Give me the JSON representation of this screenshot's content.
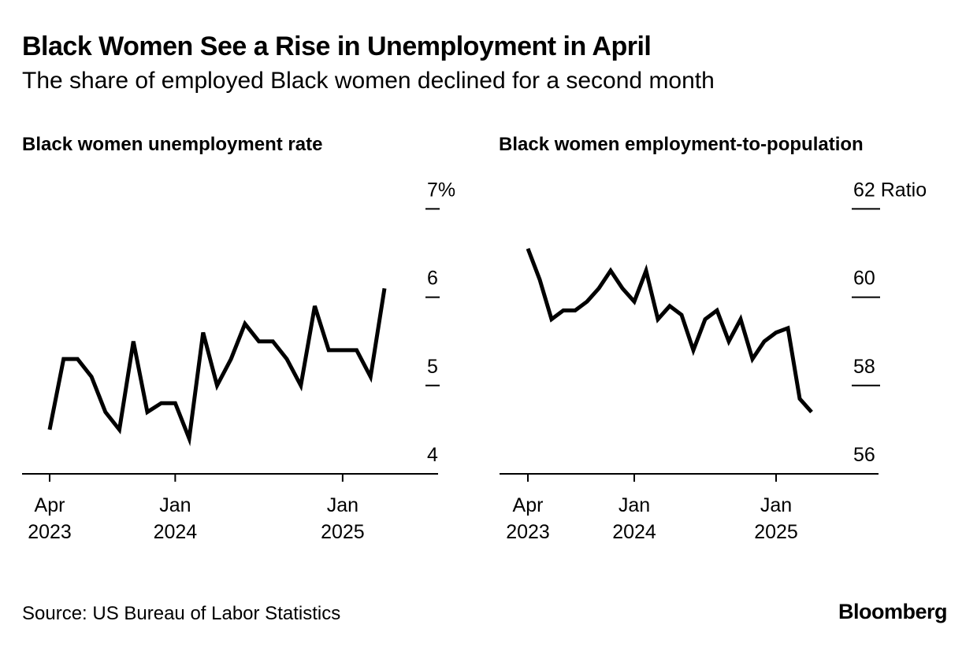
{
  "title": "Black Women See a Rise in Unemployment in April",
  "subtitle": "The share of employed Black women declined for a second month",
  "source": "Source: US Bureau of Labor Statistics",
  "brand": "Bloomberg",
  "colors": {
    "line": "#000000",
    "axis": "#000000",
    "background": "#ffffff"
  },
  "chart_data": [
    {
      "type": "line",
      "title": "Black women unemployment rate",
      "xlabel": "",
      "ylabel": "",
      "unit": "%",
      "x": [
        "2023-04",
        "2023-05",
        "2023-06",
        "2023-07",
        "2023-08",
        "2023-09",
        "2023-10",
        "2023-11",
        "2023-12",
        "2024-01",
        "2024-02",
        "2024-03",
        "2024-04",
        "2024-05",
        "2024-06",
        "2024-07",
        "2024-08",
        "2024-09",
        "2024-10",
        "2024-11",
        "2024-12",
        "2025-01",
        "2025-02",
        "2025-03",
        "2025-04"
      ],
      "series": [
        {
          "name": "Black women unemployment rate",
          "values": [
            4.5,
            5.3,
            5.3,
            5.1,
            4.7,
            4.5,
            5.5,
            4.7,
            4.8,
            4.8,
            4.4,
            5.6,
            5.0,
            5.3,
            5.7,
            5.5,
            5.5,
            5.3,
            5.0,
            5.9,
            5.4,
            5.4,
            5.4,
            5.1,
            6.1
          ]
        }
      ],
      "ylim": [
        4,
        7
      ],
      "y_ticks": [
        4,
        5,
        6,
        7
      ],
      "y_tick_labels": [
        "4",
        "5",
        "6",
        "7%"
      ],
      "x_ticks": [
        {
          "date": "2023-04",
          "label_line1": "Apr",
          "label_line2": "2023"
        },
        {
          "date": "2024-01",
          "label_line1": "Jan",
          "label_line2": "2024"
        },
        {
          "date": "2025-01",
          "label_line1": "Jan",
          "label_line2": "2025"
        }
      ],
      "grid": false
    },
    {
      "type": "line",
      "title": "Black women employment-to-population",
      "xlabel": "",
      "ylabel": "",
      "unit": "Ratio",
      "x": [
        "2023-04",
        "2023-05",
        "2023-06",
        "2023-07",
        "2023-08",
        "2023-09",
        "2023-10",
        "2023-11",
        "2023-12",
        "2024-01",
        "2024-02",
        "2024-03",
        "2024-04",
        "2024-05",
        "2024-06",
        "2024-07",
        "2024-08",
        "2024-09",
        "2024-10",
        "2024-11",
        "2024-12",
        "2025-01",
        "2025-02",
        "2025-03",
        "2025-04"
      ],
      "series": [
        {
          "name": "Black women employment-to-population",
          "values": [
            61.1,
            60.4,
            59.5,
            59.7,
            59.7,
            59.9,
            60.2,
            60.6,
            60.2,
            59.9,
            60.6,
            59.5,
            59.8,
            59.6,
            58.8,
            59.5,
            59.7,
            59.0,
            59.5,
            58.6,
            59.0,
            59.2,
            59.3,
            57.7,
            57.4
          ]
        }
      ],
      "ylim": [
        56,
        62
      ],
      "y_ticks": [
        56,
        58,
        60,
        62
      ],
      "y_tick_labels": [
        "56",
        "58",
        "60",
        "62 Ratio"
      ],
      "x_ticks": [
        {
          "date": "2023-04",
          "label_line1": "Apr",
          "label_line2": "2023"
        },
        {
          "date": "2024-01",
          "label_line1": "Jan",
          "label_line2": "2024"
        },
        {
          "date": "2025-01",
          "label_line1": "Jan",
          "label_line2": "2025"
        }
      ],
      "grid": false
    }
  ]
}
